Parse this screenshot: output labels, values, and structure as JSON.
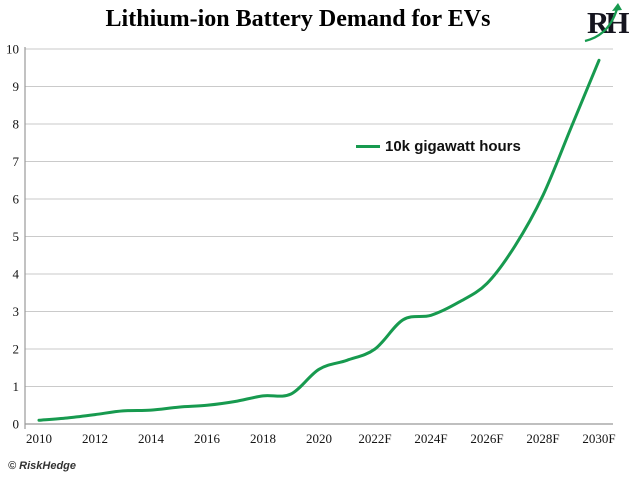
{
  "brand": {
    "logo_text": "RH"
  },
  "footer": {
    "credit": "© RiskHedge"
  },
  "colors": {
    "line": "#179a4f",
    "grid": "#cacaca",
    "axis": "#999999",
    "text": "#141414"
  },
  "chart_data": {
    "type": "line",
    "title": "Lithium-ion Battery Demand for EVs",
    "legend_label": "10k gigawatt hours",
    "legend_position": "center-right",
    "grid": "horizontal",
    "smooth": true,
    "x": [
      2010,
      2011,
      2012,
      2013,
      2014,
      2015,
      2016,
      2017,
      2018,
      2019,
      2020,
      2021,
      2022,
      2023,
      2024,
      2025,
      2026,
      2027,
      2028,
      2029,
      2030
    ],
    "x_tick_labels": [
      "2010",
      "2012",
      "2014",
      "2016",
      "2018",
      "2020",
      "2022F",
      "2024F",
      "2026F",
      "2028F",
      "2030F"
    ],
    "values": [
      0.1,
      0.16,
      0.25,
      0.35,
      0.37,
      0.45,
      0.5,
      0.6,
      0.75,
      0.8,
      1.46,
      1.7,
      2.0,
      2.78,
      2.9,
      3.25,
      3.75,
      4.75,
      6.1,
      7.9,
      9.7
    ],
    "xlabel": "",
    "ylabel": "",
    "ylim": [
      0,
      10
    ],
    "y_ticks": [
      0,
      1,
      2,
      3,
      4,
      5,
      6,
      7,
      8,
      9,
      10
    ]
  }
}
